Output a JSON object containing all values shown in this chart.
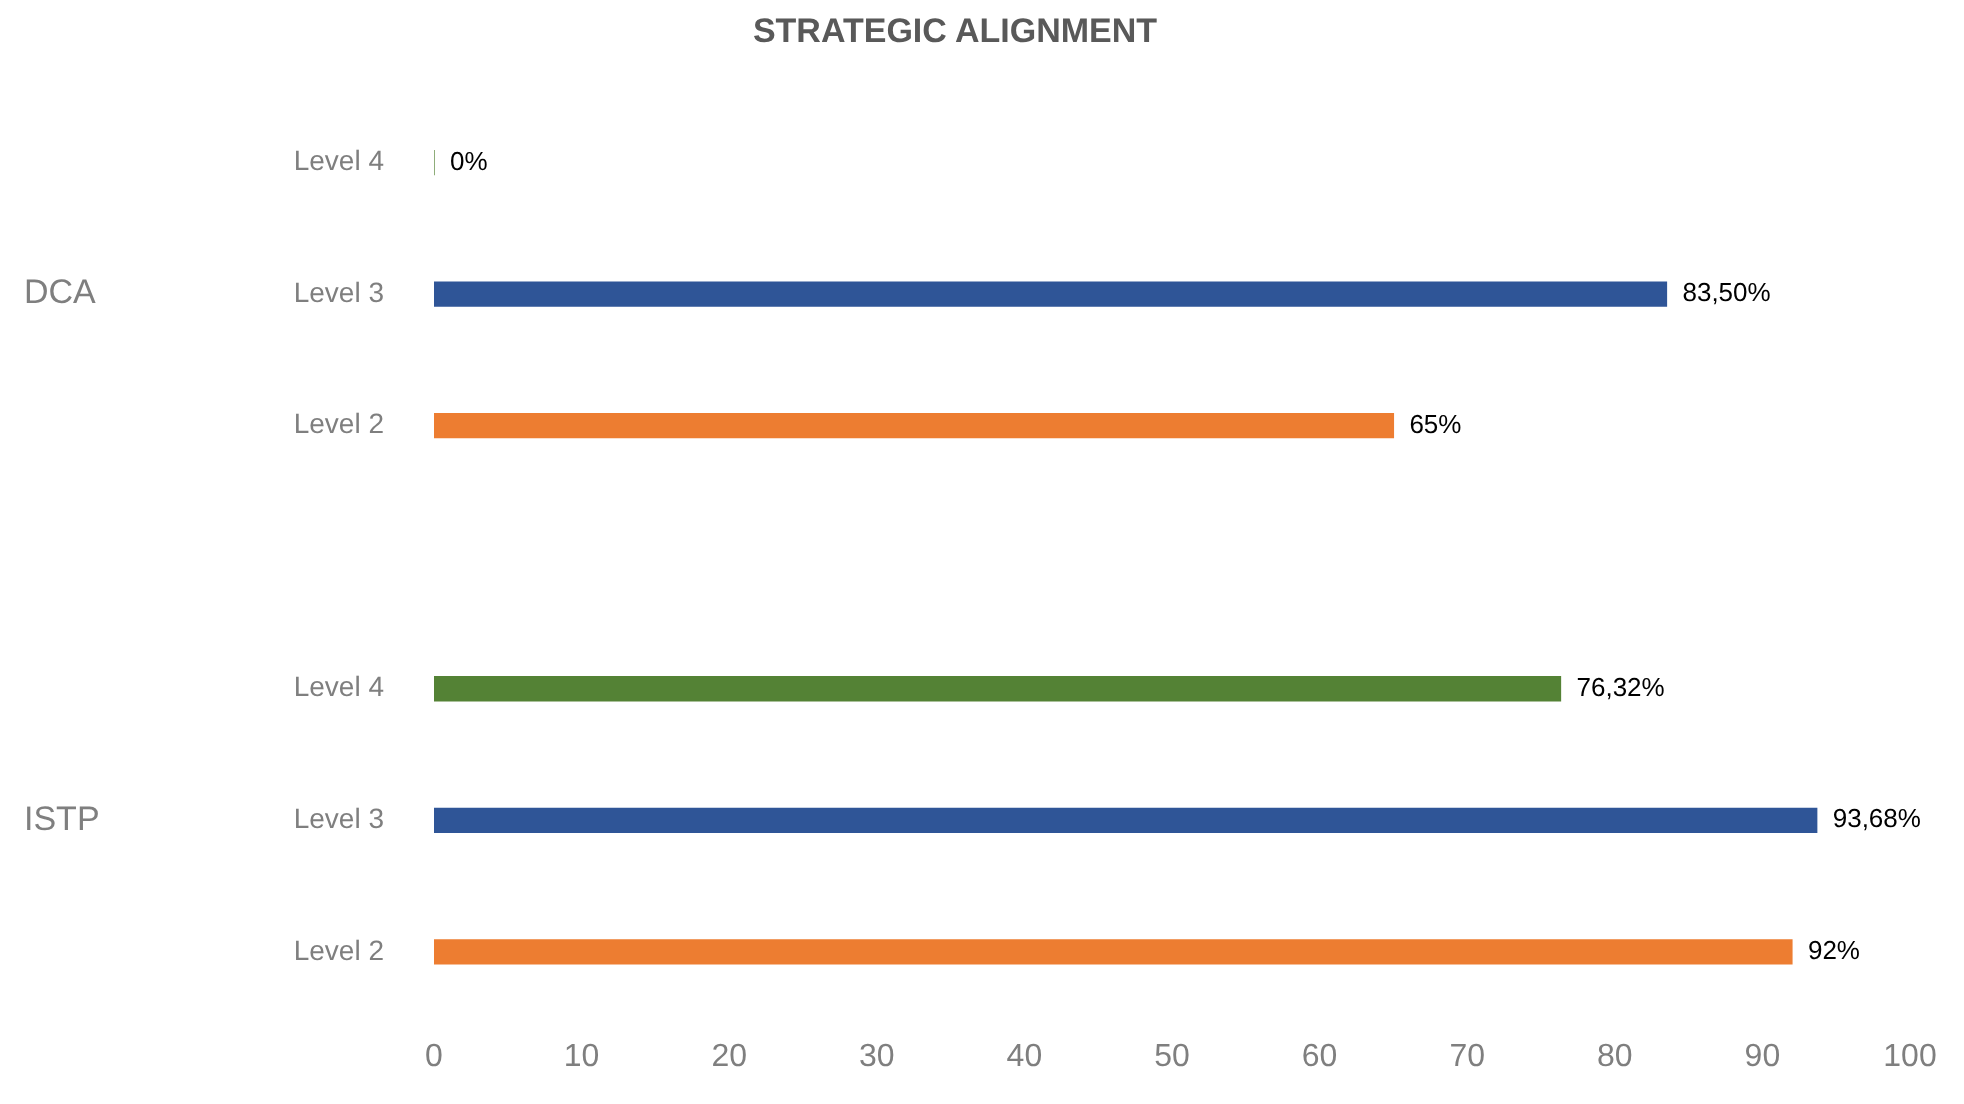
{
  "chart_data": {
    "type": "bar",
    "orientation": "horizontal",
    "title": "STRATEGIC ALIGNMENT",
    "categories": [
      "Level 4",
      "Level 3",
      "Level 2",
      null,
      "Level 4",
      "Level 3",
      "Level 2"
    ],
    "values": [
      0,
      83.5,
      65,
      null,
      76.32,
      93.68,
      92
    ],
    "colors": [
      "#548235",
      "#2f5597",
      "#ed7d31",
      "#ffffff",
      "#548235",
      "#2f5597",
      "#ed7d31"
    ],
    "value_labels": [
      "0%",
      "83,50%",
      "65%",
      null,
      "76,32%",
      "93,68%",
      "92%"
    ],
    "annotations": [
      "DCA",
      "ISTP"
    ],
    "xlim": [
      0,
      100
    ],
    "xticks": [
      0,
      10,
      20,
      30,
      40,
      50,
      60,
      70,
      80,
      90,
      100
    ]
  }
}
